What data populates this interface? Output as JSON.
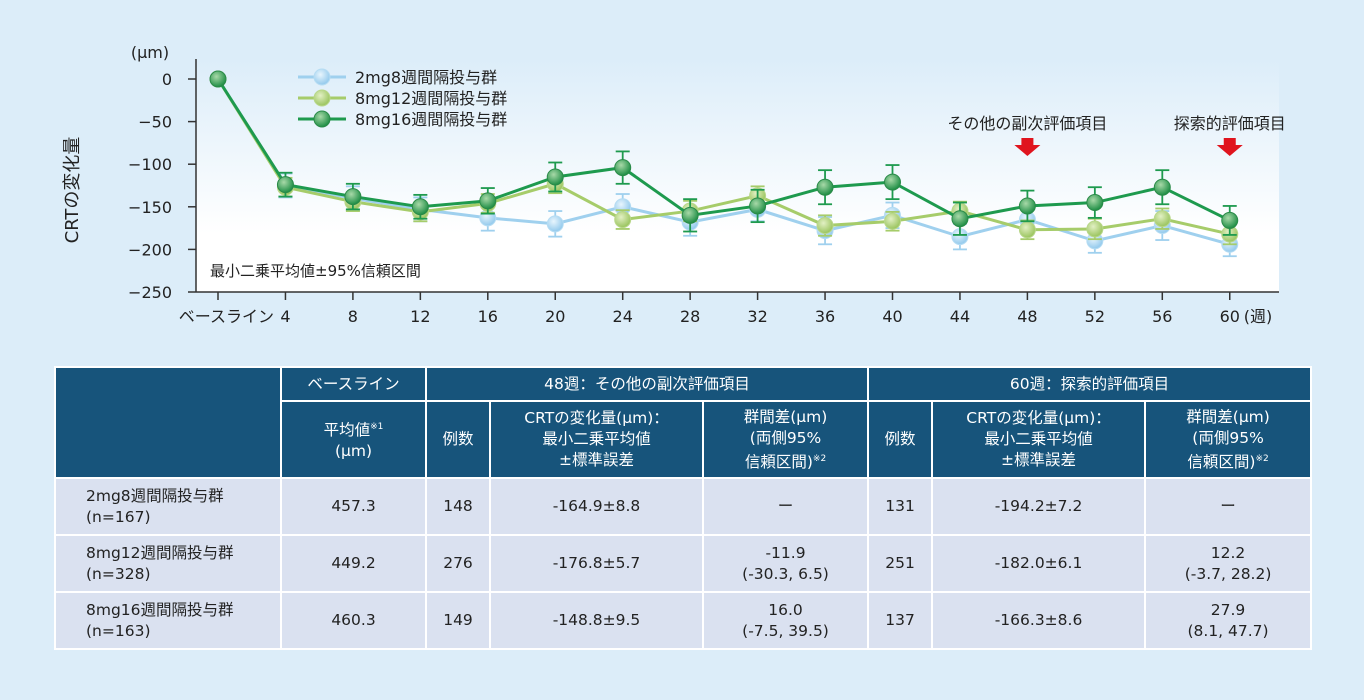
{
  "chart_data": {
    "type": "line",
    "title": "",
    "ylabel": "CRTの変化量",
    "yunit": "(μm)",
    "xlabel": "",
    "xunit": "(週)",
    "ylim": [
      -250,
      0
    ],
    "yticks": [
      0,
      -50,
      -100,
      -150,
      -200,
      -250
    ],
    "categories": [
      "ベースライン",
      "4",
      "8",
      "12",
      "16",
      "20",
      "24",
      "28",
      "32",
      "36",
      "40",
      "44",
      "48",
      "52",
      "56",
      "60"
    ],
    "note": "最小二乗平均値±95%信頼区間",
    "annotations": [
      {
        "text": "その他の副次評価項目",
        "x": "48",
        "marker": "red-down-arrow"
      },
      {
        "text": "探索的評価項目",
        "x": "60",
        "marker": "red-down-arrow"
      }
    ],
    "legend_position": "top-left-inside",
    "grid": false,
    "series": [
      {
        "name": "2mg8週間隔投与群",
        "color": "#9fd0ee",
        "values": [
          0,
          -125,
          -140,
          -153,
          -163,
          -170,
          -150,
          -168,
          -153,
          -178,
          -160,
          -185,
          -165,
          -190,
          -172,
          -194
        ],
        "ci_halfwidth": [
          0,
          14,
          14,
          14,
          15,
          15,
          15,
          16,
          14,
          16,
          15,
          15,
          17,
          14,
          17,
          14
        ]
      },
      {
        "name": "8mg12週間隔投与群",
        "color": "#a6cc6a",
        "values": [
          0,
          -127,
          -144,
          -156,
          -146,
          -123,
          -165,
          -155,
          -137,
          -172,
          -167,
          -155,
          -177,
          -176,
          -164,
          -182
        ],
        "ci_halfwidth": [
          0,
          11,
          11,
          11,
          11,
          11,
          11,
          12,
          11,
          12,
          11,
          11,
          11,
          12,
          12,
          12
        ]
      },
      {
        "name": "8mg16週間隔投与群",
        "color": "#1e9a4e",
        "values": [
          0,
          -124,
          -138,
          -150,
          -143,
          -115,
          -104,
          -160,
          -149,
          -127,
          -121,
          -164,
          -149,
          -145,
          -127,
          -166
        ],
        "ci_halfwidth": [
          0,
          14,
          15,
          14,
          15,
          17,
          19,
          19,
          19,
          20,
          20,
          19,
          18,
          18,
          20,
          17
        ]
      }
    ]
  },
  "chart_text": {
    "yunit": "(μm)",
    "ylabel": "CRTの変化量",
    "note": "最小二乗平均値±95%信頼区間",
    "annot48": "その他の副次評価項目",
    "annot60": "探索的評価項目",
    "xunit": "(週)",
    "legend": [
      "2mg8週間隔投与群",
      "8mg12週間隔投与群",
      "8mg16週間隔投与群"
    ]
  },
  "table": {
    "header_row1": {
      "baseline": "ベースライン",
      "wk48": "48週：その他の副次評価項目",
      "wk60": "60週：探索的評価項目"
    },
    "header_row2": {
      "mean_line1": "平均値",
      "mean_sup": "※1",
      "mean_line2": "(μm)",
      "n48": "例数",
      "crt48_l1": "CRTの変化量(μm)：",
      "crt48_l2": "最小二乗平均値",
      "crt48_l3": "±標準誤差",
      "diff48_l1": "群間差(μm)",
      "diff48_l2": "(両側95%",
      "diff48_l3": "信頼区間)",
      "diff48_sup": "※2",
      "n60": "例数",
      "crt60_l1": "CRTの変化量(μm)：",
      "crt60_l2": "最小二乗平均値",
      "crt60_l3": "±標準誤差",
      "diff60_l1": "群間差(μm)",
      "diff60_l2": "(両側95%",
      "diff60_l3": "信頼区間)",
      "diff60_sup": "※2"
    },
    "rows": [
      {
        "group": "2mg8週間隔投与群",
        "n": "(n=167)",
        "baseline": "457.3",
        "n48": "148",
        "crt48": "-164.9±8.8",
        "diff48_a": "ー",
        "diff48_b": "",
        "n60": "131",
        "crt60": "-194.2±7.2",
        "diff60_a": "ー",
        "diff60_b": ""
      },
      {
        "group": "8mg12週間隔投与群",
        "n": "(n=328)",
        "baseline": "449.2",
        "n48": "276",
        "crt48": "-176.8±5.7",
        "diff48_a": "-11.9",
        "diff48_b": "(-30.3, 6.5)",
        "n60": "251",
        "crt60": "-182.0±6.1",
        "diff60_a": "12.2",
        "diff60_b": "(-3.7, 28.2)"
      },
      {
        "group": "8mg16週間隔投与群",
        "n": "(n=163)",
        "baseline": "460.3",
        "n48": "149",
        "crt48": "-148.8±9.5",
        "diff48_a": "16.0",
        "diff48_b": "(-7.5, 39.5)",
        "n60": "137",
        "crt60": "-166.3±8.6",
        "diff60_a": "27.9",
        "diff60_b": "(8.1, 47.7)"
      }
    ]
  }
}
